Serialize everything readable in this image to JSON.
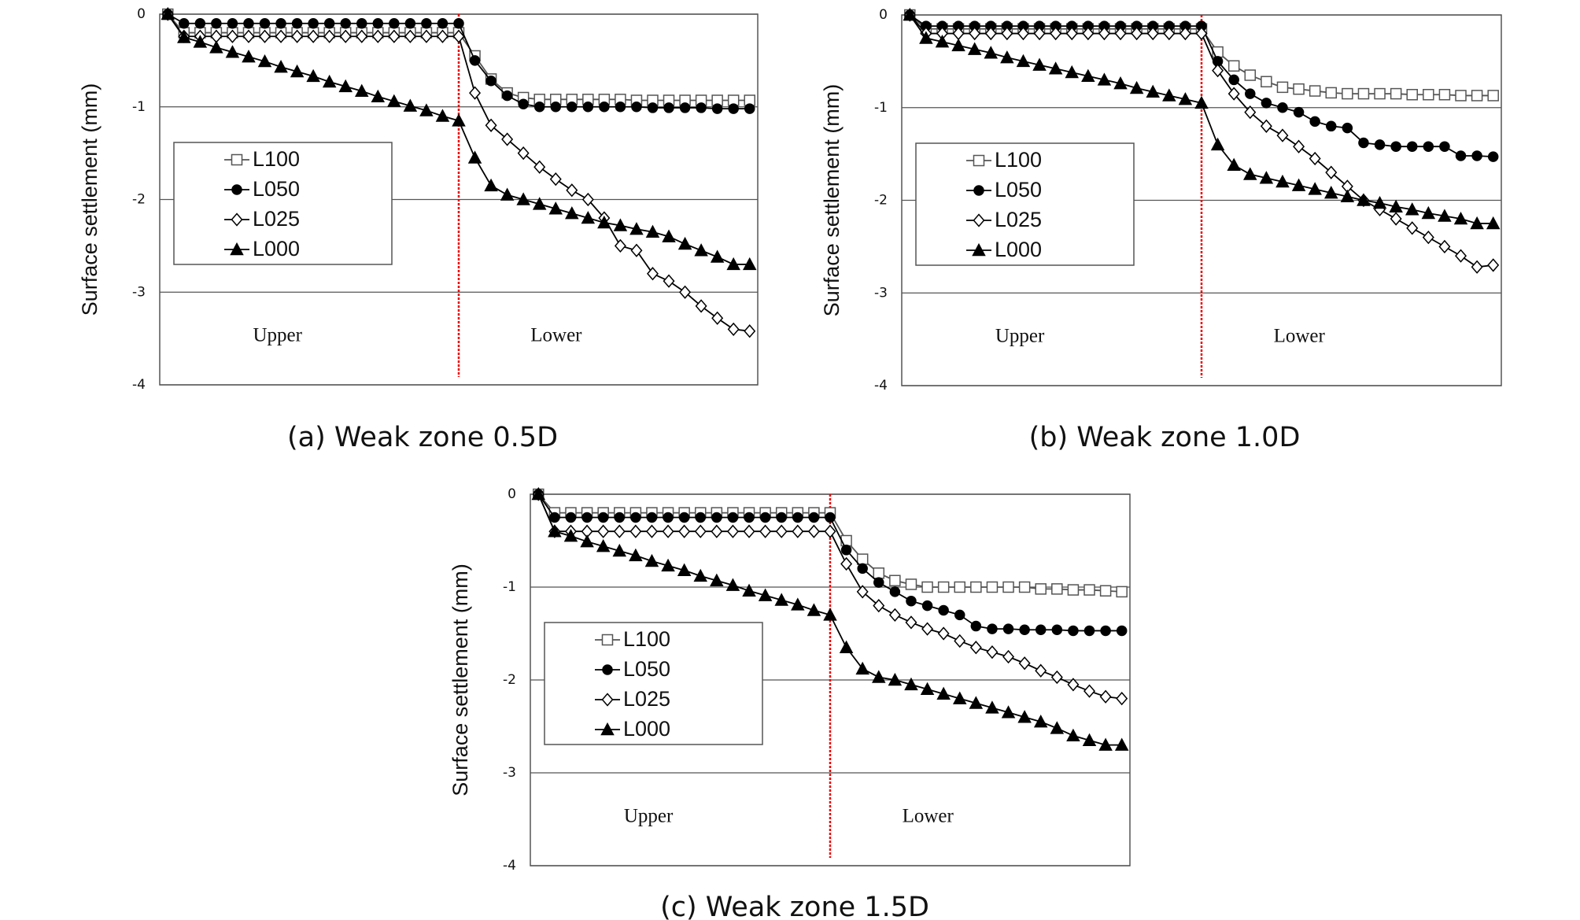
{
  "chart_data": [
    {
      "type": "line",
      "title": "(a) Weak zone 0.5D",
      "y_label": "Surface settlement (mm)",
      "annotations": [
        "Upper",
        "Lower"
      ],
      "categories": [
        null,
        null,
        null,
        null,
        null,
        null,
        null,
        null,
        null,
        null,
        null,
        null,
        null,
        null,
        null,
        null,
        null,
        null,
        null,
        null,
        null,
        null,
        null,
        null,
        null,
        null,
        null,
        null,
        null,
        null,
        null,
        null,
        null,
        null,
        null,
        null,
        null
      ],
      "ylim": [
        -4,
        0
      ],
      "yticks": [
        -4,
        -3,
        -2,
        -1,
        0
      ],
      "grid": true,
      "series": [
        {
          "name": "L100",
          "color": "#555555",
          "marker": "square-open",
          "values": [
            0,
            -0.2,
            -0.2,
            -0.2,
            -0.2,
            -0.2,
            -0.2,
            -0.2,
            -0.2,
            -0.2,
            -0.2,
            -0.2,
            -0.2,
            -0.2,
            -0.2,
            -0.2,
            -0.2,
            -0.2,
            -0.2,
            -0.45,
            -0.7,
            -0.85,
            -0.9,
            -0.92,
            -0.92,
            -0.92,
            -0.92,
            -0.92,
            -0.92,
            -0.93,
            -0.93,
            -0.93,
            -0.93,
            -0.93,
            -0.93,
            -0.93,
            -0.93
          ]
        },
        {
          "name": "L050",
          "color": "#000000",
          "marker": "circle-filled",
          "values": [
            0,
            -0.1,
            -0.1,
            -0.1,
            -0.1,
            -0.1,
            -0.1,
            -0.1,
            -0.1,
            -0.1,
            -0.1,
            -0.1,
            -0.1,
            -0.1,
            -0.1,
            -0.1,
            -0.1,
            -0.1,
            -0.1,
            -0.5,
            -0.72,
            -0.88,
            -0.97,
            -1.0,
            -1.0,
            -1.0,
            -1.0,
            -1.0,
            -1.0,
            -1.0,
            -1.01,
            -1.01,
            -1.01,
            -1.01,
            -1.02,
            -1.02,
            -1.02
          ]
        },
        {
          "name": "L025",
          "color": "#000000",
          "marker": "diamond-open",
          "values": [
            0,
            -0.24,
            -0.24,
            -0.24,
            -0.24,
            -0.24,
            -0.24,
            -0.24,
            -0.24,
            -0.24,
            -0.24,
            -0.24,
            -0.24,
            -0.24,
            -0.24,
            -0.24,
            -0.24,
            -0.24,
            -0.24,
            -0.85,
            -1.2,
            -1.35,
            -1.5,
            -1.65,
            -1.78,
            -1.9,
            -2.0,
            -2.2,
            -2.5,
            -2.55,
            -2.8,
            -2.88,
            -3.0,
            -3.15,
            -3.28,
            -3.4,
            -3.42
          ]
        },
        {
          "name": "L000",
          "color": "#000000",
          "marker": "triangle-filled",
          "values": [
            0,
            -0.25,
            -0.3,
            -0.36,
            -0.41,
            -0.46,
            -0.51,
            -0.57,
            -0.62,
            -0.67,
            -0.73,
            -0.78,
            -0.83,
            -0.89,
            -0.94,
            -0.99,
            -1.04,
            -1.1,
            -1.15,
            -1.55,
            -1.85,
            -1.95,
            -2.0,
            -2.05,
            -2.1,
            -2.15,
            -2.2,
            -2.25,
            -2.28,
            -2.32,
            -2.35,
            -2.4,
            -2.48,
            -2.55,
            -2.62,
            -2.7,
            -2.7
          ]
        }
      ]
    },
    {
      "type": "line",
      "title": "(b) Weak zone 1.0D",
      "y_label": "Surface settlement (mm)",
      "annotations": [
        "Upper",
        "Lower"
      ],
      "categories": [
        null,
        null,
        null,
        null,
        null,
        null,
        null,
        null,
        null,
        null,
        null,
        null,
        null,
        null,
        null,
        null,
        null,
        null,
        null,
        null,
        null,
        null,
        null,
        null,
        null,
        null,
        null,
        null,
        null,
        null,
        null,
        null,
        null,
        null,
        null,
        null,
        null
      ],
      "ylim": [
        -4,
        0
      ],
      "yticks": [
        -4,
        -3,
        -2,
        -1,
        0
      ],
      "grid": true,
      "series": [
        {
          "name": "L100",
          "color": "#555555",
          "marker": "square-open",
          "values": [
            0,
            -0.15,
            -0.15,
            -0.15,
            -0.15,
            -0.15,
            -0.15,
            -0.15,
            -0.15,
            -0.15,
            -0.15,
            -0.15,
            -0.15,
            -0.15,
            -0.15,
            -0.15,
            -0.15,
            -0.15,
            -0.15,
            -0.4,
            -0.55,
            -0.65,
            -0.72,
            -0.78,
            -0.8,
            -0.82,
            -0.84,
            -0.85,
            -0.85,
            -0.85,
            -0.85,
            -0.86,
            -0.86,
            -0.86,
            -0.87,
            -0.87,
            -0.87
          ]
        },
        {
          "name": "L050",
          "color": "#000000",
          "marker": "circle-filled",
          "values": [
            0,
            -0.12,
            -0.12,
            -0.12,
            -0.12,
            -0.12,
            -0.12,
            -0.12,
            -0.12,
            -0.12,
            -0.12,
            -0.12,
            -0.12,
            -0.12,
            -0.12,
            -0.12,
            -0.12,
            -0.12,
            -0.12,
            -0.5,
            -0.7,
            -0.85,
            -0.95,
            -1.0,
            -1.05,
            -1.15,
            -1.2,
            -1.22,
            -1.38,
            -1.4,
            -1.42,
            -1.42,
            -1.42,
            -1.42,
            -1.52,
            -1.52,
            -1.53
          ]
        },
        {
          "name": "L025",
          "color": "#000000",
          "marker": "diamond-open",
          "values": [
            0,
            -0.2,
            -0.2,
            -0.2,
            -0.2,
            -0.2,
            -0.2,
            -0.2,
            -0.2,
            -0.2,
            -0.2,
            -0.2,
            -0.2,
            -0.2,
            -0.2,
            -0.2,
            -0.2,
            -0.2,
            -0.2,
            -0.6,
            -0.85,
            -1.05,
            -1.2,
            -1.3,
            -1.42,
            -1.55,
            -1.7,
            -1.85,
            -2.0,
            -2.1,
            -2.2,
            -2.3,
            -2.4,
            -2.5,
            -2.6,
            -2.72,
            -2.7
          ]
        },
        {
          "name": "L000",
          "color": "#000000",
          "marker": "triangle-filled",
          "values": [
            0,
            -0.25,
            -0.29,
            -0.33,
            -0.37,
            -0.41,
            -0.46,
            -0.5,
            -0.54,
            -0.58,
            -0.62,
            -0.66,
            -0.7,
            -0.74,
            -0.79,
            -0.83,
            -0.87,
            -0.91,
            -0.95,
            -1.4,
            -1.62,
            -1.72,
            -1.76,
            -1.8,
            -1.84,
            -1.88,
            -1.92,
            -1.96,
            -2.0,
            -2.03,
            -2.07,
            -2.1,
            -2.14,
            -2.17,
            -2.2,
            -2.25,
            -2.25
          ]
        }
      ]
    },
    {
      "type": "line",
      "title": "(c) Weak zone 1.5D",
      "y_label": "Surface settlement (mm)",
      "annotations": [
        "Upper",
        "Lower"
      ],
      "categories": [
        null,
        null,
        null,
        null,
        null,
        null,
        null,
        null,
        null,
        null,
        null,
        null,
        null,
        null,
        null,
        null,
        null,
        null,
        null,
        null,
        null,
        null,
        null,
        null,
        null,
        null,
        null,
        null,
        null,
        null,
        null,
        null,
        null,
        null,
        null,
        null,
        null
      ],
      "ylim": [
        -4,
        0
      ],
      "yticks": [
        -4,
        -3,
        -2,
        -1,
        0
      ],
      "grid": true,
      "series": [
        {
          "name": "L100",
          "color": "#555555",
          "marker": "square-open",
          "values": [
            0,
            -0.2,
            -0.2,
            -0.2,
            -0.2,
            -0.2,
            -0.2,
            -0.2,
            -0.2,
            -0.2,
            -0.2,
            -0.2,
            -0.2,
            -0.2,
            -0.2,
            -0.2,
            -0.2,
            -0.2,
            -0.2,
            -0.5,
            -0.7,
            -0.85,
            -0.93,
            -0.97,
            -1.0,
            -1.0,
            -1.0,
            -1.0,
            -1.0,
            -1.0,
            -1.0,
            -1.02,
            -1.02,
            -1.03,
            -1.03,
            -1.04,
            -1.05
          ]
        },
        {
          "name": "L050",
          "color": "#000000",
          "marker": "circle-filled",
          "values": [
            0,
            -0.25,
            -0.25,
            -0.25,
            -0.25,
            -0.25,
            -0.25,
            -0.25,
            -0.25,
            -0.25,
            -0.25,
            -0.25,
            -0.25,
            -0.25,
            -0.25,
            -0.25,
            -0.25,
            -0.25,
            -0.25,
            -0.6,
            -0.8,
            -0.95,
            -1.05,
            -1.15,
            -1.2,
            -1.25,
            -1.3,
            -1.42,
            -1.45,
            -1.45,
            -1.46,
            -1.46,
            -1.46,
            -1.47,
            -1.47,
            -1.47,
            -1.47
          ]
        },
        {
          "name": "L025",
          "color": "#000000",
          "marker": "diamond-open",
          "values": [
            0,
            -0.4,
            -0.4,
            -0.4,
            -0.4,
            -0.4,
            -0.4,
            -0.4,
            -0.4,
            -0.4,
            -0.4,
            -0.4,
            -0.4,
            -0.4,
            -0.4,
            -0.4,
            -0.4,
            -0.4,
            -0.4,
            -0.75,
            -1.05,
            -1.2,
            -1.3,
            -1.38,
            -1.45,
            -1.5,
            -1.58,
            -1.65,
            -1.7,
            -1.75,
            -1.82,
            -1.9,
            -1.97,
            -2.05,
            -2.12,
            -2.18,
            -2.2
          ]
        },
        {
          "name": "L000",
          "color": "#000000",
          "marker": "triangle-filled",
          "values": [
            0,
            -0.4,
            -0.45,
            -0.51,
            -0.56,
            -0.61,
            -0.66,
            -0.72,
            -0.77,
            -0.82,
            -0.88,
            -0.93,
            -0.98,
            -1.04,
            -1.09,
            -1.14,
            -1.19,
            -1.25,
            -1.3,
            -1.65,
            -1.88,
            -1.97,
            -2.0,
            -2.05,
            -2.1,
            -2.15,
            -2.2,
            -2.25,
            -2.3,
            -2.35,
            -2.4,
            -2.45,
            -2.52,
            -2.6,
            -2.65,
            -2.7,
            -2.7
          ]
        }
      ]
    }
  ]
}
